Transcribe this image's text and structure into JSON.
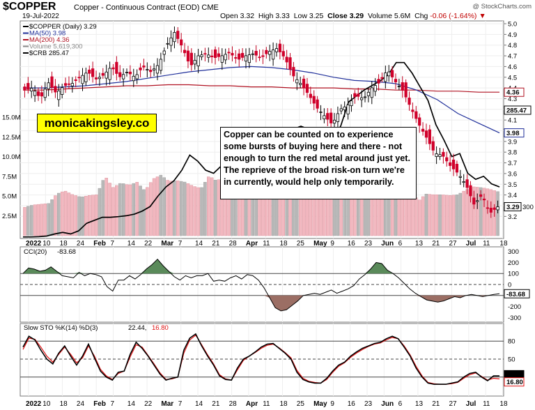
{
  "header": {
    "symbol": "$COPPER",
    "description": "Copper - Continuous Contract (EOD)",
    "exchange": "CME",
    "date": "19-Jul-2022",
    "ohlc": {
      "open_label": "Open",
      "open": "3.32",
      "high_label": "High",
      "high": "3.33",
      "low_label": "Low",
      "low": "3.25",
      "close_label": "Close",
      "close": "3.29",
      "volume_label": "Volume",
      "volume": "5.6M",
      "chg_label": "Chg",
      "chg": "-0.06 (-1.64%)"
    },
    "credit": "@ StockCharts.com"
  },
  "legend": {
    "items": [
      {
        "text": "$COPPER (Daily) 3.29",
        "color": "#000000"
      },
      {
        "text": "MA(50) 3.98",
        "color": "#1f2f9a"
      },
      {
        "text": "MA(200) 4.36",
        "color": "#b01020"
      },
      {
        "text": "Volume 5,619,300",
        "color": "#888888"
      },
      {
        "text": "$CRB 285.47",
        "color": "#000000"
      }
    ]
  },
  "watermark": "monicakingsley.co",
  "note": "Copper can be counted on to experience some bursts of buying here and there - not enough to turn the red metal around just yet. The reprieve of the broad risk-on turn we're in currently, would help only temporarily.",
  "x_axis": {
    "labels": [
      "2022",
      "10",
      "18",
      "24",
      "Feb",
      "7",
      "14",
      "22",
      "Mar",
      "7",
      "14",
      "21",
      "28",
      "Apr",
      "11",
      "18",
      "25",
      "May",
      "9",
      "16",
      "23",
      "Jun",
      "6",
      "13",
      "21",
      "27",
      "Jul",
      "11",
      "18"
    ],
    "bold": [
      "2022",
      "Feb",
      "Mar",
      "Apr",
      "May",
      "Jun",
      "Jul"
    ]
  },
  "chart_data": [
    {
      "type": "candlestick",
      "title": "$COPPER (Daily)",
      "y_ticks": [
        "5.0",
        "4.9",
        "4.8",
        "4.7",
        "4.6",
        "4.5",
        "4.4",
        "4.3",
        "4.2",
        "4.1",
        "4.0",
        "3.9",
        "3.8",
        "3.7",
        "3.6",
        "3.5",
        "3.4",
        "3.3",
        "3.2"
      ],
      "ylim": [
        3.1,
        5.05
      ],
      "last_price": "3.29",
      "ma50_label": "3.98",
      "ma200_label": "4.36",
      "crb_label": "285.47",
      "crb_tag": "300",
      "price_anchors": [
        4.38,
        4.4,
        4.3,
        4.45,
        4.35,
        4.42,
        4.44,
        4.5,
        4.55,
        4.48,
        4.52,
        4.6,
        4.5,
        4.55,
        4.5,
        4.6,
        4.55,
        4.62,
        4.8,
        4.92,
        4.78,
        4.6,
        4.7,
        4.72,
        4.68,
        4.7,
        4.73,
        4.66,
        4.7,
        4.72,
        4.68,
        4.74,
        4.77,
        4.68,
        4.52,
        4.44,
        4.34,
        4.22,
        4.14,
        4.06,
        4.2,
        4.24,
        4.33,
        4.3,
        4.4,
        4.45,
        4.57,
        4.46,
        4.37,
        4.21,
        4.06,
        3.93,
        3.79,
        3.77,
        3.67,
        3.6,
        3.49,
        3.31,
        3.4,
        3.23,
        3.29
      ],
      "ma50": [
        4.4,
        4.4,
        4.41,
        4.42,
        4.44,
        4.46,
        4.49,
        4.52,
        4.55,
        4.57,
        4.59,
        4.6,
        4.59,
        4.57,
        4.54,
        4.5,
        4.47,
        4.46,
        4.44,
        4.38,
        4.29,
        4.16,
        4.07,
        3.98
      ],
      "ma200": [
        4.38,
        4.38,
        4.39,
        4.4,
        4.41,
        4.42,
        4.42,
        4.43,
        4.43,
        4.42,
        4.42,
        4.41,
        4.41,
        4.4,
        4.4,
        4.4,
        4.39,
        4.39,
        4.38,
        4.38,
        4.37,
        4.37,
        4.36,
        4.36
      ],
      "crb": [
        4.35,
        4.35,
        4.36,
        4.38,
        4.45,
        4.5,
        4.45,
        4.55,
        4.8,
        4.9,
        5.0,
        5.0,
        5.02,
        5.05,
        5.1,
        5.2,
        5.35,
        5.7,
        6.0,
        6.2,
        6.55,
        7.05,
        6.85,
        6.55,
        6.45,
        6.7,
        6.8,
        6.8,
        6.85,
        7.0,
        7.3,
        7.6,
        7.8,
        7.7,
        7.9,
        8.0,
        7.9,
        7.8,
        7.7,
        7.6,
        8.0,
        8.8,
        9.0,
        9.2,
        9.35,
        9.5,
        9.7,
        10.1,
        10.1,
        9.75,
        9.3,
        8.85,
        8.05,
        7.55,
        7.0,
        7.1,
        6.45,
        6.25,
        6.35,
        6.1,
        6.0
      ]
    },
    {
      "type": "bar",
      "title": "Volume",
      "y_ticks": [
        "15.0M",
        "12.5M",
        "10.0M",
        "7.5M",
        "5.0M",
        "2.5M"
      ],
      "ylim": [
        0,
        17.5
      ],
      "values_m": [
        3.6,
        3.9,
        4.0,
        4.1,
        5.3,
        5.7,
        5.2,
        4.9,
        5.1,
        5.2,
        7.6,
        6.1,
        6.7,
        6.4,
        6.8,
        5.7,
        7.2,
        7.7,
        6.9,
        7.0,
        6.8,
        6.3,
        6.0,
        7.6,
        6.9,
        8.0,
        7.7,
        7.5,
        6.0,
        7.4,
        6.8,
        7.5,
        6.8,
        7.7,
        5.7,
        5.6,
        5.3,
        6.2,
        6.4,
        5.0,
        5.6,
        5.4,
        5.4,
        5.6,
        5.6,
        5.6,
        6.9,
        6.4,
        7.0,
        4.3,
        5.3,
        5.2,
        5.2,
        5.1,
        5.2,
        5.8,
        6.2,
        6.1,
        5.9,
        5.6
      ],
      "down_days": [
        2,
        5,
        6,
        8,
        11,
        13,
        16,
        18,
        21,
        23,
        25,
        27,
        30,
        32,
        35,
        36,
        37,
        38,
        41,
        44,
        47,
        48,
        49,
        51,
        53,
        55,
        56,
        58
      ]
    },
    {
      "type": "line",
      "title": "CCI(20)",
      "value_label": "-83.68",
      "y_ticks": [
        "300",
        "200",
        "100",
        "0",
        "-100",
        "-200",
        "-300"
      ],
      "ylim": [
        -330,
        330
      ],
      "values": [
        100,
        150,
        140,
        120,
        130,
        160,
        120,
        80,
        70,
        60,
        110,
        80,
        100,
        90,
        70,
        -20,
        -60,
        40,
        40,
        80,
        50,
        90,
        140,
        180,
        230,
        170,
        120,
        70,
        40,
        80,
        60,
        80,
        80,
        100,
        30,
        40,
        30,
        60,
        80,
        50,
        90,
        80,
        40,
        -30,
        -120,
        -210,
        -240,
        -230,
        -190,
        -150,
        -100,
        -90,
        -80,
        -90,
        -70,
        -50,
        -80,
        -60,
        -40,
        -10,
        50,
        90,
        140,
        200,
        190,
        130,
        100,
        60,
        10,
        -40,
        -80,
        -110,
        -140,
        -150,
        -160,
        -150,
        -130,
        -110,
        -120,
        -100,
        -90,
        -100,
        -110,
        -100,
        -90,
        -84
      ]
    },
    {
      "type": "line",
      "title": "Slow STO %K(14) %D(3)",
      "k_label": "22.44",
      "d_label": "16.80",
      "y_ticks": [
        "80",
        "50",
        "20"
      ],
      "ylim": [
        0,
        100
      ],
      "k": [
        70,
        88,
        82,
        65,
        50,
        42,
        60,
        72,
        55,
        40,
        55,
        75,
        52,
        30,
        20,
        15,
        28,
        30,
        58,
        78,
        68,
        55,
        40,
        25,
        15,
        18,
        20,
        65,
        85,
        92,
        72,
        55,
        40,
        22,
        16,
        15,
        35,
        50,
        55,
        62,
        70,
        75,
        76,
        68,
        60,
        50,
        28,
        16,
        12,
        10,
        10,
        18,
        30,
        40,
        45,
        55,
        62,
        68,
        72,
        76,
        78,
        84,
        88,
        84,
        70,
        55,
        35,
        20,
        10,
        8,
        8,
        8,
        10,
        12,
        20,
        26,
        28,
        20,
        14,
        22,
        22
      ],
      "d": [
        66,
        85,
        83,
        70,
        55,
        45,
        58,
        70,
        58,
        44,
        52,
        72,
        55,
        33,
        22,
        16,
        26,
        30,
        54,
        74,
        70,
        56,
        42,
        27,
        16,
        17,
        20,
        60,
        82,
        90,
        74,
        57,
        42,
        24,
        17,
        15,
        32,
        48,
        55,
        61,
        68,
        73,
        75,
        69,
        61,
        52,
        31,
        18,
        13,
        11,
        10,
        16,
        28,
        38,
        44,
        53,
        60,
        66,
        71,
        75,
        77,
        82,
        86,
        84,
        72,
        57,
        38,
        22,
        11,
        9,
        8,
        8,
        9,
        11,
        18,
        24,
        27,
        21,
        15,
        18,
        17
      ]
    }
  ]
}
